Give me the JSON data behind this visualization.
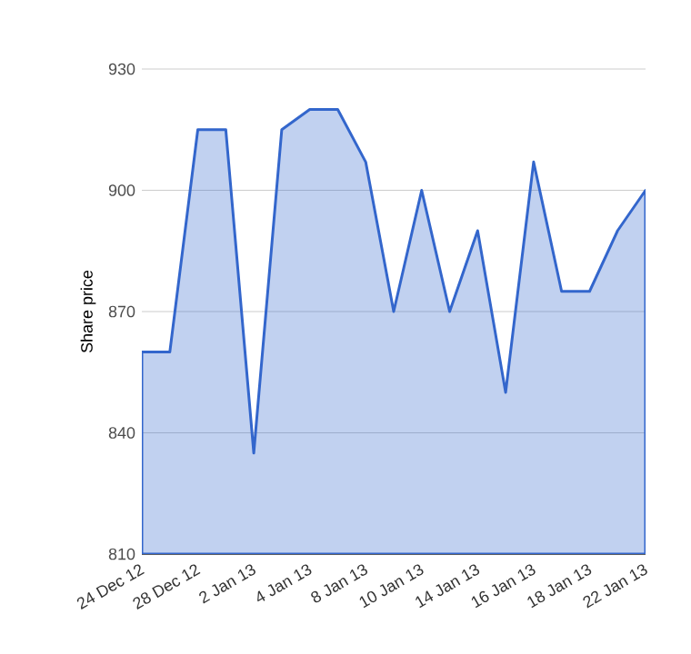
{
  "chart_data": {
    "type": "area",
    "ylabel": "Share price",
    "categories": [
      "24 Dec 12",
      null,
      "28 Dec 12",
      null,
      "2 Jan 13",
      null,
      "4 Jan 13",
      null,
      "8 Jan 13",
      null,
      "10 Jan 13",
      null,
      "14 Jan 13",
      null,
      "16 Jan 13",
      null,
      "18 Jan 13",
      null,
      "22 Jan 13"
    ],
    "series": [
      {
        "color": "#3366cc",
        "values": [
          860,
          860,
          915,
          915,
          835,
          915,
          920,
          920,
          907,
          870,
          900,
          870,
          890,
          850,
          907,
          875,
          875,
          890,
          900
        ]
      }
    ],
    "ylim": [
      810,
      930
    ],
    "yticks": [
      810,
      840,
      870,
      900,
      930
    ],
    "grid": "y"
  }
}
